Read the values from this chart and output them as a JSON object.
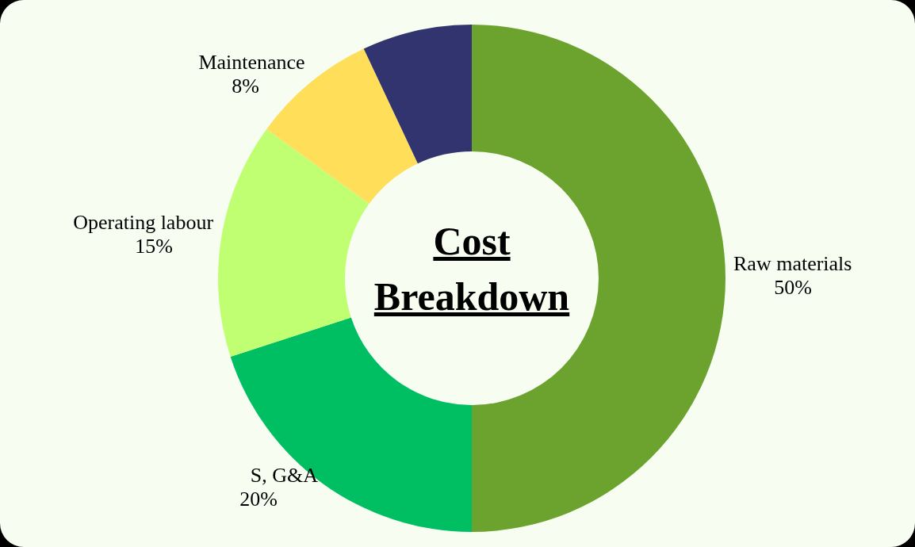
{
  "chart_data": {
    "type": "donut",
    "title": "Cost Breakdown",
    "categories": [
      "Raw materials",
      "S, G&A",
      "Operating labour",
      "Maintenance",
      null
    ],
    "values": [
      50,
      20,
      15,
      8,
      7
    ],
    "value_labels": [
      "50%",
      "20%",
      "15%",
      "8%",
      null
    ],
    "colors": [
      "#6ca32f",
      "#00bf63",
      "#c1ff72",
      "#ffde59",
      "#31346e"
    ]
  }
}
